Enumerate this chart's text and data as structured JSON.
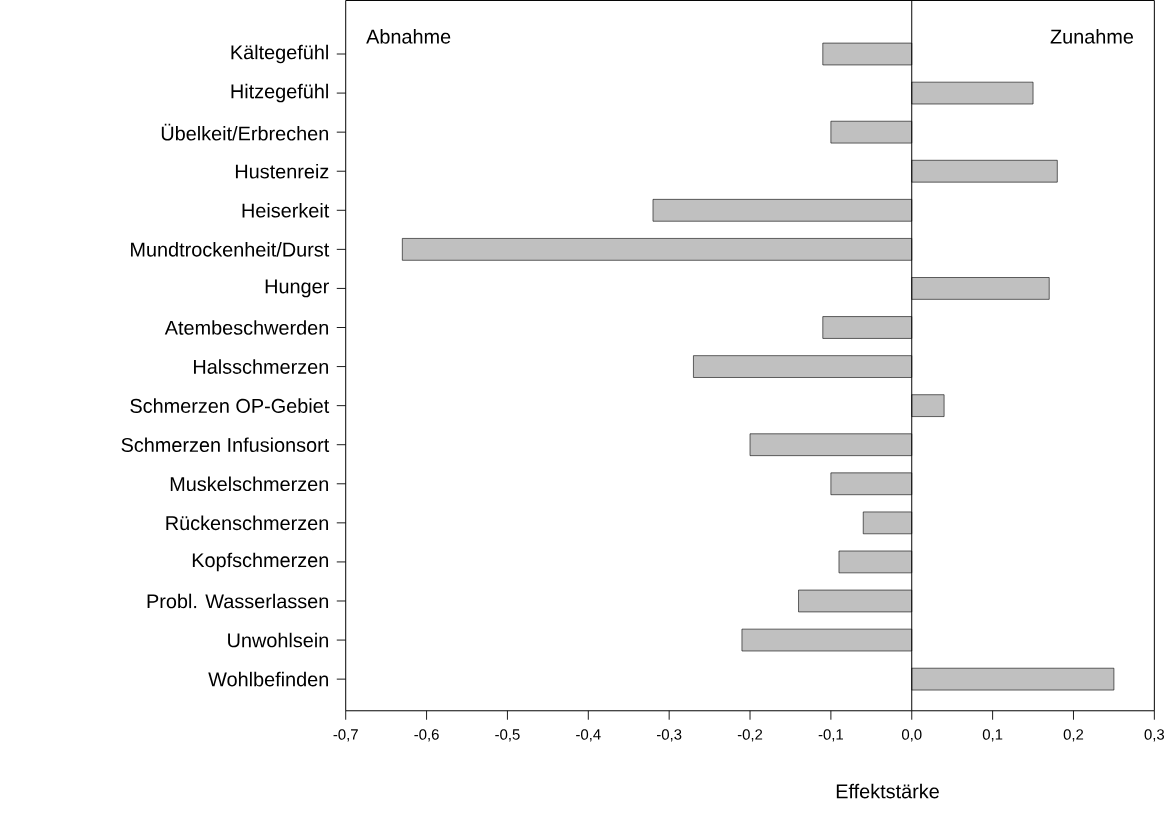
{
  "chart_data": {
    "type": "bar",
    "orientation": "horizontal",
    "xlabel": "Effektstärke",
    "categories": [
      "Kältegefühl",
      "Hitzegefühl",
      "Übelkeit/Erbrechen",
      "Hustenreiz",
      "Heiserkeit",
      "Mundtrockenheit/Durst",
      "Hunger",
      "Atembeschwerden",
      "Halsschmerzen",
      "Schmerzen OP-Gebiet",
      "Schmerzen Infusionsort",
      "Muskelschmerzen",
      "Rückenschmerzen",
      "Kopfschmerzen",
      "Probl. Wasserlassen",
      "Unwohlsein",
      "Wohlbefinden"
    ],
    "values": [
      -0.11,
      0.15,
      -0.1,
      0.18,
      -0.32,
      -0.63,
      0.17,
      -0.11,
      -0.27,
      0.04,
      -0.2,
      -0.1,
      -0.06,
      -0.09,
      -0.14,
      -0.21,
      0.25
    ],
    "color": "#c0c0c0",
    "xlim": [
      -0.7,
      0.3
    ],
    "xticks": [
      {
        "value": -0.7,
        "label": "-0,7"
      },
      {
        "value": -0.6,
        "label": "-0,6"
      },
      {
        "value": -0.5,
        "label": "-0,5"
      },
      {
        "value": -0.4,
        "label": "-0,4"
      },
      {
        "value": -0.3,
        "label": "-0,3"
      },
      {
        "value": -0.2,
        "label": "-0,2"
      },
      {
        "value": -0.1,
        "label": "-0,1"
      },
      {
        "value": 0,
        "label": "0,0"
      },
      {
        "value": 0.1,
        "label": "0,1"
      },
      {
        "value": 0.2,
        "label": "0,2"
      },
      {
        "value": 0.3,
        "label": "0,3"
      }
    ],
    "annotations": [
      "Abnahme",
      "Zunahme"
    ]
  }
}
